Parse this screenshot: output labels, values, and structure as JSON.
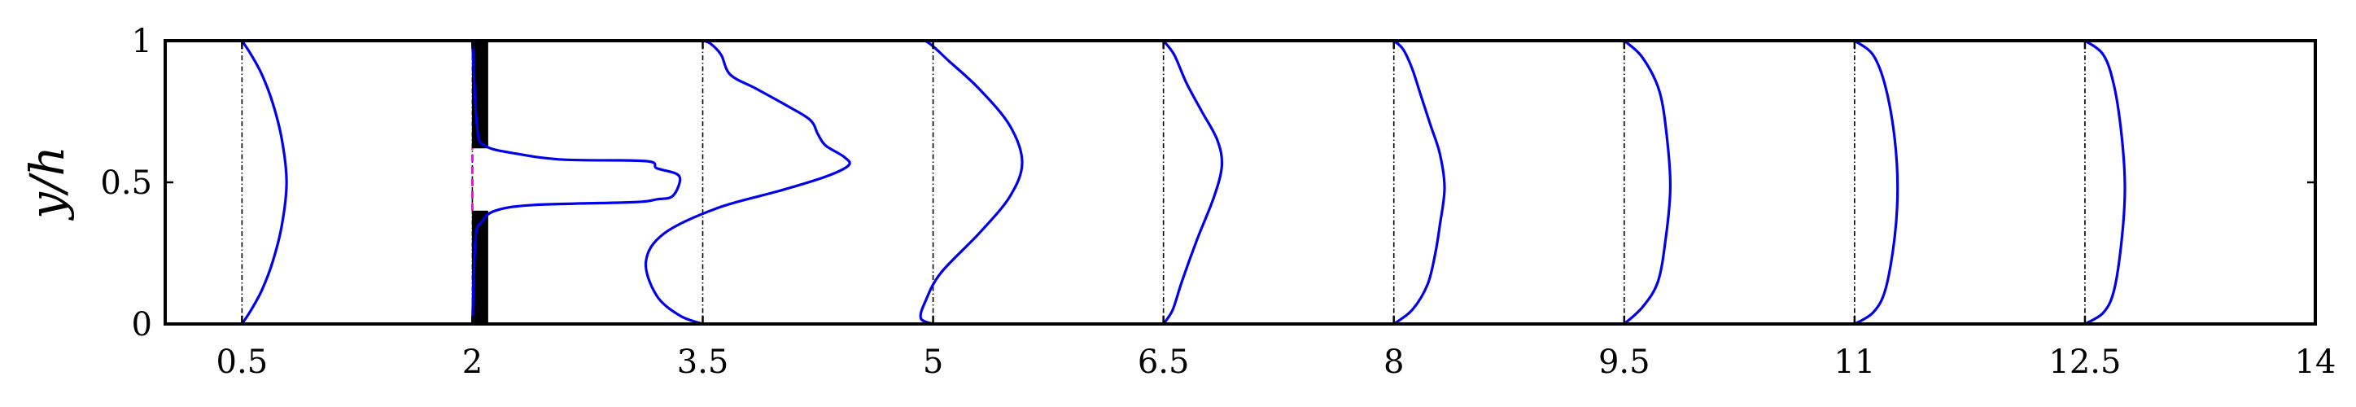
{
  "chart_data": {
    "type": "line",
    "title": "",
    "xlabel": "",
    "ylabel": "y/h",
    "xlim": [
      0,
      14
    ],
    "ylim": [
      0,
      1
    ],
    "xticks": [
      "0.5",
      "2",
      "3.5",
      "5",
      "6.5",
      "8",
      "9.5",
      "11",
      "12.5",
      "14"
    ],
    "yticks": [
      "0",
      "0.5",
      "1"
    ],
    "grid": false,
    "legend": "none",
    "colors": {
      "profile": "#0000ee",
      "reference": "#000000",
      "gap": "#ff00ff",
      "obstacle": "#000000"
    },
    "reference_lines": [
      0.5,
      2,
      3.5,
      5,
      6.5,
      8,
      9.5,
      11,
      12.5
    ],
    "obstacle": {
      "x": 2.05,
      "segments": [
        [
          0,
          0.4
        ],
        [
          0.62,
          1
        ]
      ],
      "gap_line": [
        0.4,
        0.62
      ]
    },
    "series": [
      {
        "x0": 0.5,
        "points": [
          [
            0.5,
            0
          ],
          [
            0.56,
            0.05
          ],
          [
            0.63,
            0.12
          ],
          [
            0.7,
            0.22
          ],
          [
            0.76,
            0.35
          ],
          [
            0.79,
            0.5
          ],
          [
            0.76,
            0.65
          ],
          [
            0.7,
            0.78
          ],
          [
            0.63,
            0.88
          ],
          [
            0.56,
            0.95
          ],
          [
            0.5,
            1
          ]
        ]
      },
      {
        "x0": 2,
        "points": [
          [
            2,
            0
          ],
          [
            2.02,
            0.3
          ],
          [
            2.06,
            0.36
          ],
          [
            2.15,
            0.4
          ],
          [
            2.4,
            0.42
          ],
          [
            3.05,
            0.43
          ],
          [
            3.2,
            0.44
          ],
          [
            3.3,
            0.45
          ],
          [
            3.35,
            0.5
          ],
          [
            3.33,
            0.53
          ],
          [
            3.2,
            0.55
          ],
          [
            3.13,
            0.575
          ],
          [
            2.6,
            0.58
          ],
          [
            2.3,
            0.6
          ],
          [
            2.08,
            0.63
          ],
          [
            2.03,
            0.7
          ],
          [
            2,
            1
          ]
        ]
      },
      {
        "x0": 3.5,
        "points": [
          [
            3.5,
            0
          ],
          [
            3.35,
            0.03
          ],
          [
            3.2,
            0.1
          ],
          [
            3.13,
            0.22
          ],
          [
            3.25,
            0.32
          ],
          [
            3.6,
            0.41
          ],
          [
            4,
            0.47
          ],
          [
            4.3,
            0.52
          ],
          [
            4.45,
            0.56
          ],
          [
            4.42,
            0.59
          ],
          [
            4.3,
            0.63
          ],
          [
            4.25,
            0.67
          ],
          [
            4.2,
            0.72
          ],
          [
            4.05,
            0.77
          ],
          [
            3.85,
            0.83
          ],
          [
            3.68,
            0.88
          ],
          [
            3.62,
            0.95
          ],
          [
            3.55,
            0.99
          ],
          [
            3.5,
            1
          ]
        ]
      },
      {
        "x0": 5,
        "points": [
          [
            5,
            0
          ],
          [
            4.92,
            0.02
          ],
          [
            4.95,
            0.08
          ],
          [
            5.05,
            0.18
          ],
          [
            5.3,
            0.32
          ],
          [
            5.5,
            0.45
          ],
          [
            5.58,
            0.57
          ],
          [
            5.5,
            0.7
          ],
          [
            5.3,
            0.83
          ],
          [
            5.1,
            0.93
          ],
          [
            5,
            0.98
          ],
          [
            4.95,
            1
          ]
        ]
      },
      {
        "x0": 6.5,
        "points": [
          [
            6.5,
            0
          ],
          [
            6.56,
            0.05
          ],
          [
            6.62,
            0.15
          ],
          [
            6.72,
            0.3
          ],
          [
            6.83,
            0.45
          ],
          [
            6.88,
            0.56
          ],
          [
            6.85,
            0.65
          ],
          [
            6.75,
            0.75
          ],
          [
            6.65,
            0.85
          ],
          [
            6.57,
            0.95
          ],
          [
            6.5,
            1
          ]
        ]
      },
      {
        "x0": 8,
        "points": [
          [
            8,
            0
          ],
          [
            8.12,
            0.05
          ],
          [
            8.22,
            0.14
          ],
          [
            8.27,
            0.25
          ],
          [
            8.3,
            0.35
          ],
          [
            8.33,
            0.48
          ],
          [
            8.3,
            0.6
          ],
          [
            8.24,
            0.7
          ],
          [
            8.18,
            0.8
          ],
          [
            8.12,
            0.9
          ],
          [
            8.06,
            0.97
          ],
          [
            8,
            1
          ]
        ]
      },
      {
        "x0": 9.5,
        "points": [
          [
            9.5,
            0
          ],
          [
            9.62,
            0.06
          ],
          [
            9.72,
            0.15
          ],
          [
            9.77,
            0.3
          ],
          [
            9.8,
            0.48
          ],
          [
            9.78,
            0.65
          ],
          [
            9.73,
            0.82
          ],
          [
            9.62,
            0.94
          ],
          [
            9.5,
            1
          ]
        ]
      },
      {
        "x0": 11,
        "points": [
          [
            11,
            0
          ],
          [
            11.12,
            0.04
          ],
          [
            11.2,
            0.12
          ],
          [
            11.26,
            0.3
          ],
          [
            11.28,
            0.48
          ],
          [
            11.26,
            0.66
          ],
          [
            11.2,
            0.84
          ],
          [
            11.12,
            0.95
          ],
          [
            11,
            1
          ]
        ]
      },
      {
        "x0": 12.5,
        "points": [
          [
            12.5,
            0
          ],
          [
            12.62,
            0.04
          ],
          [
            12.69,
            0.12
          ],
          [
            12.74,
            0.3
          ],
          [
            12.76,
            0.48
          ],
          [
            12.74,
            0.66
          ],
          [
            12.69,
            0.84
          ],
          [
            12.62,
            0.95
          ],
          [
            12.5,
            1
          ]
        ]
      }
    ]
  }
}
